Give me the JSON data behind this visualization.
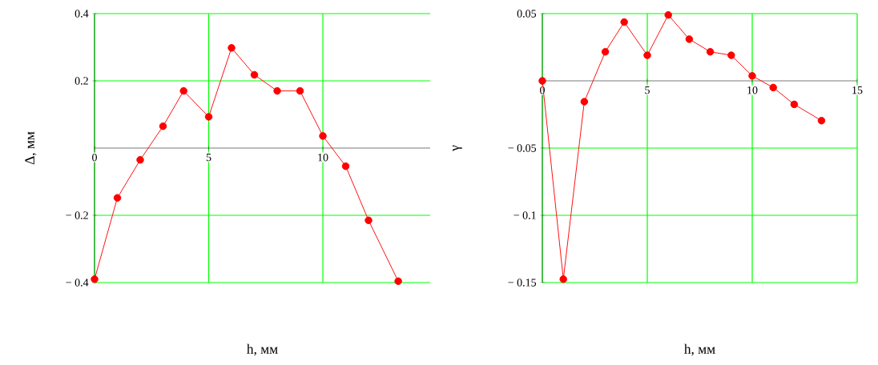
{
  "chart_data": [
    {
      "type": "line",
      "x": [
        0,
        1,
        2,
        3,
        3.9,
        5,
        6,
        7,
        8,
        9,
        10,
        11,
        12,
        13.3
      ],
      "series": [
        {
          "color": "#ff0000",
          "values": [
            -0.39,
            -0.148,
            -0.035,
            0.065,
            0.17,
            0.093,
            0.298,
            0.218,
            0.17,
            0.17,
            0.036,
            -0.054,
            -0.215,
            -0.396
          ]
        }
      ],
      "xlim": [
        0,
        14.7
      ],
      "ylim": [
        -0.4,
        0.4
      ],
      "xticks": [
        0,
        5,
        10
      ],
      "yticks": [
        0.4,
        0.2,
        {
          "value": -0.2,
          "label": "− 0.2"
        },
        {
          "value": -0.4,
          "label": "− 0.4"
        }
      ],
      "xlabel": "h, мм",
      "ylabel": "Δ, мм",
      "grid": true,
      "marker": "circle",
      "line_style": "solid"
    },
    {
      "type": "line",
      "x": [
        0,
        1,
        2,
        3,
        3.9,
        5,
        6,
        7,
        8,
        9,
        10,
        11,
        12,
        13.3
      ],
      "series": [
        {
          "color": "#ff0000",
          "values": [
            0,
            -0.1475,
            -0.0155,
            0.0216,
            0.0437,
            0.019,
            0.049,
            0.031,
            0.0216,
            0.019,
            0.0037,
            -0.005,
            -0.0175,
            -0.0296
          ]
        }
      ],
      "xlim": [
        0,
        15
      ],
      "ylim": [
        -0.15,
        0.05
      ],
      "xticks": [
        0,
        5,
        10,
        15
      ],
      "yticks": [
        0.05,
        {
          "value": -0.05,
          "label": "− 0.05"
        },
        {
          "value": -0.1,
          "label": "− 0.1"
        },
        {
          "value": -0.15,
          "label": "− 0.15"
        }
      ],
      "xlabel": "h, мм",
      "ylabel": "γ",
      "grid": true,
      "marker": "circle",
      "line_style": "solid"
    }
  ]
}
